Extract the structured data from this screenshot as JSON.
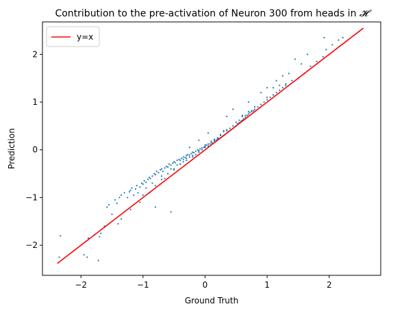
{
  "chart_data": {
    "type": "scatter",
    "title_prefix": "Contribution to the pre-activation of Neuron 300 from heads in ",
    "title_symbol": "𝓗",
    "xlabel": "Ground Truth",
    "ylabel": "Prediction",
    "xlim": [
      -2.62,
      2.83
    ],
    "ylim": [
      -2.63,
      2.68
    ],
    "xticks": [
      -2,
      -1,
      0,
      1,
      2
    ],
    "yticks": [
      -2,
      -1,
      0,
      1,
      2
    ],
    "xtick_labels": [
      "−2",
      "−1",
      "0",
      "1",
      "2"
    ],
    "ytick_labels": [
      "−2",
      "−1",
      "0",
      "1",
      "2"
    ],
    "grid": false,
    "legend_position": "top-left",
    "point_color": "#1f77b4",
    "reference_line": {
      "name": "y=x",
      "color": "#ff0000",
      "x": [
        -2.38,
        2.55
      ],
      "y": [
        -2.38,
        2.55
      ]
    },
    "series": [
      {
        "x": [
          -2.35,
          -2.33,
          -1.95,
          -1.9,
          -1.88,
          -1.72,
          -1.78,
          -1.7,
          -1.62,
          -1.58,
          -1.55,
          -1.45,
          -1.42,
          -1.38,
          -1.35,
          -1.3,
          -1.25,
          -1.22,
          -1.2,
          -1.18,
          -1.15,
          -1.12,
          -1.1,
          -1.08,
          -1.05,
          -1.02,
          -1.0,
          -0.98,
          -0.95,
          -0.92,
          -0.9,
          -0.88,
          -0.85,
          -0.82,
          -0.8,
          -0.78,
          -0.75,
          -0.72,
          -0.7,
          -0.68,
          -0.65,
          -0.62,
          -0.6,
          -0.58,
          -0.55,
          -0.52,
          -0.5,
          -0.48,
          -0.45,
          -0.42,
          -0.4,
          -0.38,
          -0.35,
          -0.32,
          -0.3,
          -0.28,
          -0.25,
          -0.22,
          -0.2,
          -0.18,
          -0.15,
          -0.12,
          -0.1,
          -0.08,
          -0.05,
          -0.02,
          0.0,
          0.02,
          0.05,
          0.08,
          0.1,
          0.12,
          0.15,
          0.18,
          0.2,
          0.22,
          0.25,
          0.28,
          0.3,
          0.32,
          0.35,
          0.38,
          0.4,
          0.42,
          0.45,
          0.48,
          0.5,
          0.52,
          0.55,
          0.58,
          0.6,
          0.62,
          0.65,
          0.68,
          0.7,
          0.72,
          0.75,
          0.78,
          0.8,
          0.85,
          0.9,
          0.95,
          1.0,
          1.05,
          1.1,
          1.15,
          1.2,
          1.25,
          1.3,
          1.4,
          1.5,
          1.6,
          1.7,
          1.8,
          1.9,
          1.92,
          1.95,
          2.05,
          2.15,
          2.22,
          -1.2,
          -1.05,
          -0.95,
          -0.85,
          -0.7,
          -0.6,
          -0.5,
          -0.4,
          -0.3,
          -0.2,
          -0.1,
          0.0,
          0.1,
          0.2,
          0.3,
          0.4,
          0.5,
          0.6,
          0.7,
          0.8,
          1.0,
          1.2,
          -1.0,
          -0.9,
          -0.8,
          -0.7,
          -0.6,
          -0.5,
          -0.4,
          -0.3,
          -0.2,
          -0.1,
          0.05,
          0.15,
          0.25,
          0.35,
          0.45,
          0.55,
          0.65,
          0.75,
          0.9,
          1.1,
          1.3,
          -0.55,
          -0.45,
          -0.35,
          -0.25,
          -0.15,
          -0.05,
          0.05,
          0.15,
          0.25,
          0.35,
          -0.65,
          -0.35,
          0.0,
          0.3,
          0.6,
          1.1,
          1.35,
          1.45,
          1.55,
          1.65,
          -1.5,
          -1.35,
          -1.4,
          -1.68,
          -0.55,
          -0.8,
          0.35,
          0.45,
          0.7,
          0.9,
          1.0,
          1.15,
          1.25,
          -0.25,
          -0.1,
          0.05
        ],
        "y": [
          -2.25,
          -1.8,
          -2.2,
          -2.25,
          -1.85,
          -2.32,
          -1.78,
          -1.82,
          -1.6,
          -1.2,
          -1.15,
          -1.05,
          -1.12,
          -1.0,
          -0.95,
          -0.9,
          -1.0,
          -0.88,
          -0.85,
          -0.8,
          -0.95,
          -0.82,
          -0.75,
          -0.9,
          -0.78,
          -0.7,
          -0.72,
          -0.65,
          -0.68,
          -0.62,
          -0.58,
          -0.6,
          -0.55,
          -0.5,
          -0.52,
          -0.45,
          -0.48,
          -0.42,
          -0.4,
          -0.45,
          -0.38,
          -0.35,
          -0.36,
          -0.3,
          -0.32,
          -0.28,
          -0.25,
          -0.27,
          -0.22,
          -0.2,
          -0.22,
          -0.18,
          -0.15,
          -0.16,
          -0.12,
          -0.1,
          -0.11,
          -0.08,
          -0.05,
          -0.06,
          -0.03,
          0.0,
          -0.02,
          0.02,
          0.04,
          0.05,
          0.07,
          0.1,
          0.08,
          0.12,
          0.15,
          0.14,
          0.18,
          0.2,
          0.22,
          0.24,
          0.25,
          0.28,
          0.3,
          0.32,
          0.35,
          0.38,
          0.4,
          0.42,
          0.45,
          0.48,
          0.5,
          0.55,
          0.57,
          0.6,
          0.62,
          0.65,
          0.68,
          0.72,
          0.75,
          0.78,
          0.8,
          0.82,
          0.85,
          0.9,
          0.95,
          1.0,
          1.05,
          1.1,
          1.15,
          1.2,
          1.25,
          1.3,
          1.35,
          1.45,
          1.5,
          1.6,
          1.75,
          1.85,
          1.95,
          2.35,
          2.1,
          2.2,
          2.3,
          2.35,
          -1.25,
          -1.1,
          -0.8,
          -0.7,
          -0.55,
          -0.5,
          -0.42,
          -0.3,
          -0.18,
          -0.12,
          -0.02,
          0.1,
          0.18,
          0.25,
          0.38,
          0.45,
          0.58,
          0.7,
          0.8,
          0.9,
          1.1,
          1.35,
          -0.95,
          -0.9,
          -0.75,
          -0.62,
          -0.5,
          -0.4,
          -0.3,
          -0.22,
          -0.15,
          -0.05,
          0.12,
          0.2,
          0.32,
          0.42,
          0.5,
          0.62,
          0.72,
          0.82,
          0.95,
          1.15,
          1.38,
          -0.4,
          -0.32,
          -0.25,
          -0.15,
          -0.1,
          0.0,
          0.08,
          0.22,
          0.3,
          0.4,
          -0.6,
          -0.2,
          0.05,
          0.4,
          0.72,
          1.3,
          1.6,
          1.9,
          1.8,
          2.0,
          -1.35,
          -1.45,
          -1.55,
          -1.75,
          -1.3,
          -1.2,
          0.7,
          0.85,
          1.0,
          1.2,
          1.3,
          1.45,
          1.55,
          0.05,
          0.2,
          0.35
        ]
      }
    ]
  }
}
